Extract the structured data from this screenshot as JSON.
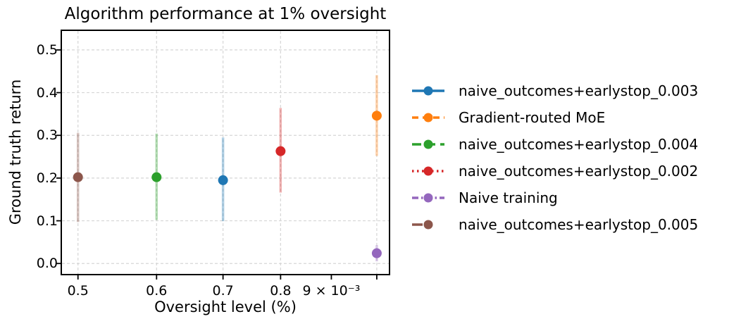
{
  "chart_data": {
    "type": "scatter",
    "title": "Algorithm performance at 1% oversight",
    "xlabel": "Oversight level (%)",
    "ylabel": "Ground truth return",
    "x_scale": "log",
    "xlim": [
      0.00481,
      0.0103
    ],
    "ylim": [
      -0.026,
      0.546
    ],
    "grid": true,
    "grid_color": "#d6d6d6",
    "legend_position": "right-of-plot",
    "xticks": [
      {
        "value": 0.005,
        "label": "0.5",
        "gridline": true
      },
      {
        "value": 0.006,
        "label": "0.6",
        "gridline": true
      },
      {
        "value": 0.007,
        "label": "0.7",
        "gridline": true
      },
      {
        "value": 0.008,
        "label": "0.8",
        "gridline": true
      },
      {
        "value": 0.009,
        "label": "9 × 10⁻³",
        "gridline": false
      },
      {
        "value": 0.01,
        "label": "",
        "gridline": true
      }
    ],
    "yticks": [
      0.0,
      0.1,
      0.2,
      0.3,
      0.4,
      0.5
    ],
    "series": [
      {
        "name": "naive_outcomes+earlystop_0.003",
        "color": "#1f77b4",
        "linestyle": "solid",
        "x": 0.007,
        "y": 0.195,
        "y_err_low": 0.099,
        "y_err_high": 0.295
      },
      {
        "name": "Gradient-routed MoE",
        "color": "#ff7f0e",
        "linestyle": "dashed",
        "x": 0.01,
        "y": 0.346,
        "y_err_low": 0.252,
        "y_err_high": 0.441
      },
      {
        "name": "naive_outcomes+earlystop_0.004",
        "color": "#2ca02c",
        "linestyle": "long-dash",
        "x": 0.006,
        "y": 0.202,
        "y_err_low": 0.102,
        "y_err_high": 0.304
      },
      {
        "name": "naive_outcomes+earlystop_0.002",
        "color": "#d62728",
        "linestyle": "dotted",
        "x": 0.008,
        "y": 0.263,
        "y_err_low": 0.166,
        "y_err_high": 0.364
      },
      {
        "name": "Naive training",
        "color": "#9467bd",
        "linestyle": "dash-dot",
        "x": 0.01,
        "y": 0.024,
        "y_err_low": 0.005,
        "y_err_high": 0.043
      },
      {
        "name": "naive_outcomes+earlystop_0.005",
        "color": "#8c564b",
        "linestyle": "short-dash",
        "x": 0.005,
        "y": 0.202,
        "y_err_low": 0.097,
        "y_err_high": 0.306
      }
    ]
  }
}
